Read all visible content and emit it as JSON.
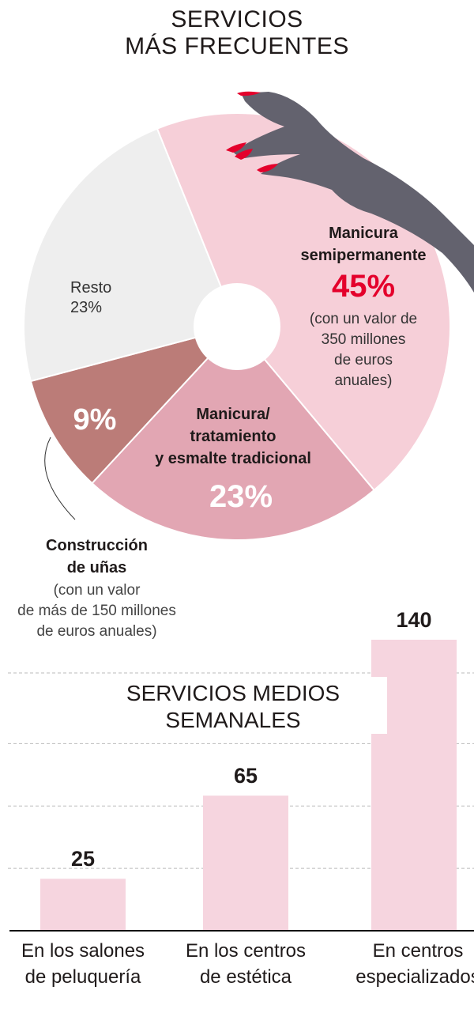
{
  "chart_data": [
    {
      "type": "pie",
      "title": "SERVICIOS MÁS FRECUENTES",
      "title_lines": [
        "SERVICIOS",
        "MÁS FRECUENTES"
      ],
      "slices": [
        {
          "name": "Manicura semipermanente",
          "value": 45,
          "label": "45%",
          "color": "#f6cfd8",
          "note": [
            "(con un valor de",
            "350 millones",
            "de euros",
            "anuales)"
          ]
        },
        {
          "name": "Manicura/ tratamiento y esmalte tradicional",
          "value": 23,
          "label": "23%",
          "color": "#e2a6b3"
        },
        {
          "name": "Construcción de uñas",
          "value": 9,
          "label": "9%",
          "color": "#bb7c78",
          "note": [
            "(con un valor",
            "de más de 150 millones",
            "de euros anuales)"
          ]
        },
        {
          "name": "Resto",
          "value": 23,
          "label": "23%",
          "color": "#eeeeee"
        }
      ],
      "text": {
        "semi": [
          "Manicura",
          "semipermanente"
        ],
        "trad": [
          "Manicura/",
          "tratamiento",
          "y esmalte tradicional"
        ],
        "constr": [
          "Construcción",
          "de uñas"
        ],
        "resto": "Resto"
      },
      "accent_color": "#e4002b",
      "hand_color": "#63626e"
    },
    {
      "type": "bar",
      "title_lines": [
        "SERVICIOS MEDIOS",
        "SEMANALES"
      ],
      "categories": [
        [
          "En los salones",
          "de peluquería"
        ],
        [
          "En los centros",
          "de estética"
        ],
        [
          "En centros",
          "especializados"
        ]
      ],
      "values": [
        25,
        65,
        140
      ],
      "value_labels": [
        "25",
        "65",
        "140"
      ],
      "ylim": [
        0,
        140
      ],
      "grid": true,
      "bar_color": "#f6d5df"
    }
  ]
}
